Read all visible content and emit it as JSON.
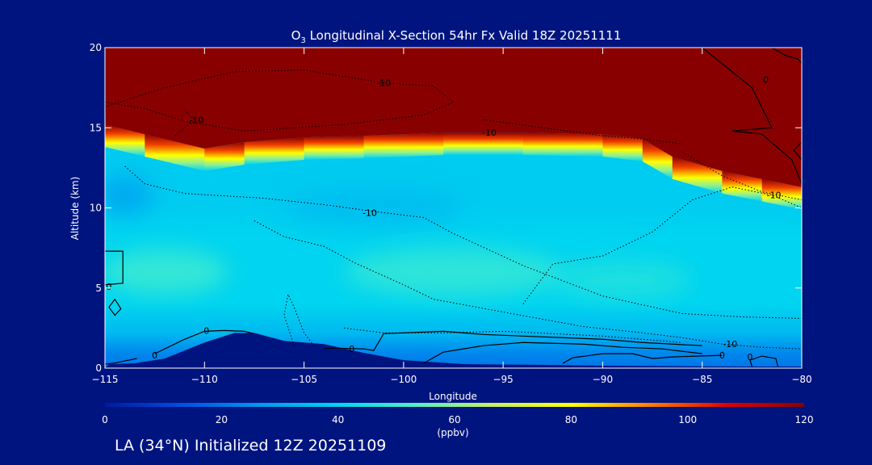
{
  "chart_data": {
    "type": "heatmap",
    "title_prefix": "O",
    "title_sub": "3",
    "title_rest": " Longitudinal X-Section 54hr  Fx Valid 18Z 20251111",
    "xlabel": "Longitude",
    "ylabel": "Altitude (km)",
    "xlim": [
      -115,
      -80
    ],
    "ylim": [
      0,
      20
    ],
    "xticks": [
      {
        "v": -115,
        "label": "−115"
      },
      {
        "v": -110,
        "label": "−110"
      },
      {
        "v": -105,
        "label": "−105"
      },
      {
        "v": -100,
        "label": "−100"
      },
      {
        "v": -95,
        "label": "−95"
      },
      {
        "v": -90,
        "label": "−90"
      },
      {
        "v": -85,
        "label": "−85"
      },
      {
        "v": -80,
        "label": "−80"
      }
    ],
    "yticks": [
      {
        "v": 0,
        "label": "0"
      },
      {
        "v": 5,
        "label": "5"
      },
      {
        "v": 10,
        "label": "10"
      },
      {
        "v": 15,
        "label": "15"
      },
      {
        "v": 20,
        "label": "20"
      }
    ],
    "colorbar": {
      "label": "(ppbv)",
      "min": 0,
      "max": 120,
      "ticks": [
        {
          "v": 0,
          "label": "0"
        },
        {
          "v": 20,
          "label": "20"
        },
        {
          "v": 40,
          "label": "40"
        },
        {
          "v": 60,
          "label": "60"
        },
        {
          "v": 80,
          "label": "80"
        },
        {
          "v": 100,
          "label": "100"
        },
        {
          "v": 120,
          "label": "120"
        }
      ],
      "stops": [
        "#001a9c",
        "#0050e0",
        "#0098f0",
        "#00d4f0",
        "#50f0c8",
        "#c8f060",
        "#ffff00",
        "#ff8000",
        "#e00000",
        "#880000"
      ]
    },
    "background_color": "#001480",
    "terrain_color": "#001480",
    "tropopause_km": [
      {
        "lon": -115,
        "km": 13.8
      },
      {
        "lon": -113,
        "km": 13.2
      },
      {
        "lon": -110,
        "km": 12.3
      },
      {
        "lon": -108,
        "km": 12.7
      },
      {
        "lon": -105,
        "km": 13.0
      },
      {
        "lon": -102,
        "km": 13.1
      },
      {
        "lon": -98,
        "km": 13.3
      },
      {
        "lon": -94,
        "km": 13.3
      },
      {
        "lon": -90,
        "km": 13.2
      },
      {
        "lon": -88,
        "km": 12.9
      },
      {
        "lon": -86.5,
        "km": 11.8
      },
      {
        "lon": -84,
        "km": 10.9
      },
      {
        "lon": -82,
        "km": 10.4
      },
      {
        "lon": -80,
        "km": 9.9
      }
    ],
    "terrain_km": [
      {
        "lon": -115,
        "km": 0
      },
      {
        "lon": -114.8,
        "km": 0.25
      },
      {
        "lon": -113.5,
        "km": 0.3
      },
      {
        "lon": -112,
        "km": 0.6
      },
      {
        "lon": -110,
        "km": 1.6
      },
      {
        "lon": -108.5,
        "km": 2.2
      },
      {
        "lon": -107.5,
        "km": 2.2
      },
      {
        "lon": -106,
        "km": 1.7
      },
      {
        "lon": -104,
        "km": 1.5
      },
      {
        "lon": -102,
        "km": 0.95
      },
      {
        "lon": -100,
        "km": 0.5
      },
      {
        "lon": -97,
        "km": 0.25
      },
      {
        "lon": -93,
        "km": 0.2
      },
      {
        "lon": -90,
        "km": 0.15
      },
      {
        "lon": -86,
        "km": 0.12
      },
      {
        "lon": -83,
        "km": 0.1
      },
      {
        "lon": -80,
        "km": 0.1
      }
    ],
    "contours": [
      {
        "level": "0",
        "style": "solid",
        "label_at": {
          "lon": -109.9,
          "km": 2.35
        },
        "points": [
          [
            -112.5,
            0.9
          ],
          [
            -111,
            1.8
          ],
          [
            -110,
            2.3
          ],
          [
            -109,
            2.35
          ],
          [
            -108,
            2.3
          ],
          [
            -107.5,
            2.15
          ]
        ]
      },
      {
        "level": "0",
        "style": "solid",
        "label_at": {
          "lon": -114.8,
          "km": 5.1
        },
        "points": [
          [
            -115,
            7.3
          ],
          [
            -114.1,
            7.3
          ],
          [
            -114.1,
            5.3
          ],
          [
            -115,
            5.2
          ]
        ]
      },
      {
        "level": "0",
        "style": "solid",
        "label_at": null,
        "points": [
          [
            -114.5,
            4.3
          ],
          [
            -114.2,
            3.7
          ],
          [
            -114.5,
            3.3
          ],
          [
            -114.8,
            3.8
          ],
          [
            -114.5,
            4.3
          ]
        ]
      },
      {
        "level": "0",
        "style": "solid",
        "label_at": {
          "lon": -112.5,
          "km": 0.8
        },
        "points": [
          [
            -113.4,
            0.6
          ],
          [
            -114.6,
            0.3
          ],
          [
            -115,
            0.25
          ]
        ]
      },
      {
        "level": "0",
        "style": "solid",
        "label_at": {
          "lon": -102.6,
          "km": 1.2
        },
        "points": [
          [
            -104,
            1.2
          ],
          [
            -103.5,
            1.25
          ],
          [
            -102,
            1.2
          ],
          [
            -101.5,
            1.1
          ],
          [
            -101,
            2.15
          ],
          [
            -98,
            2.3
          ],
          [
            -96,
            2.1
          ],
          [
            -94,
            2.0
          ],
          [
            -90,
            1.8
          ],
          [
            -88,
            1.6
          ],
          [
            -85,
            1.4
          ]
        ]
      },
      {
        "level": "0",
        "style": "solid",
        "label_at": null,
        "points": [
          [
            -99,
            0.3
          ],
          [
            -98,
            1.0
          ],
          [
            -96,
            1.4
          ],
          [
            -94,
            1.6
          ],
          [
            -91,
            1.5
          ],
          [
            -89,
            1.3
          ],
          [
            -87,
            1.2
          ],
          [
            -85,
            0.9
          ]
        ]
      },
      {
        "level": "0",
        "style": "solid",
        "label_at": {
          "lon": -84,
          "km": 0.8
        },
        "points": [
          [
            -92,
            0.3
          ],
          [
            -91.5,
            0.65
          ],
          [
            -90,
            0.9
          ],
          [
            -88.5,
            0.9
          ],
          [
            -87.5,
            0.6
          ],
          [
            -86.5,
            0.7
          ],
          [
            -84,
            0.8
          ]
        ]
      },
      {
        "level": "0",
        "style": "solid",
        "label_at": {
          "lon": -82.6,
          "km": 0.7
        },
        "points": [
          [
            -82.5,
            0.1
          ],
          [
            -82.6,
            0.5
          ],
          [
            -82,
            0.75
          ],
          [
            -81.3,
            0.6
          ],
          [
            -81.2,
            0.1
          ]
        ]
      },
      {
        "level": "0",
        "style": "solid",
        "label_at": {
          "lon": -81.8,
          "km": 18
        },
        "points": [
          [
            -85,
            20
          ],
          [
            -82.5,
            17.5
          ],
          [
            -81.5,
            15.0
          ],
          [
            -83.5,
            14.8
          ],
          [
            -82,
            14.6
          ],
          [
            -80.5,
            13
          ],
          [
            -80,
            11.5
          ]
        ]
      },
      {
        "level": "0",
        "style": "solid",
        "label_at": null,
        "points": [
          [
            -81.5,
            20
          ],
          [
            -80.8,
            19.5
          ],
          [
            -80.2,
            19.3
          ],
          [
            -80,
            19
          ]
        ]
      },
      {
        "level": "0",
        "style": "solid",
        "label_at": null,
        "points": [
          [
            -80,
            14.1
          ],
          [
            -80.4,
            13.6
          ],
          [
            -80,
            13.0
          ]
        ]
      },
      {
        "level": "-10",
        "style": "dotted",
        "label_at": {
          "lon": -101,
          "km": 17.8
        },
        "points": [
          [
            -115,
            16.3
          ],
          [
            -112,
            17.5
          ],
          [
            -108.5,
            18.5
          ],
          [
            -105,
            18.6
          ],
          [
            -101,
            17.8
          ],
          [
            -98.5,
            17.6
          ],
          [
            -97.5,
            16.6
          ],
          [
            -99,
            15.8
          ],
          [
            -103,
            15.2
          ],
          [
            -108,
            14.8
          ],
          [
            -111,
            15.4
          ],
          [
            -113,
            16.2
          ],
          [
            -115,
            16.6
          ]
        ]
      },
      {
        "level": "-10",
        "style": "dotted",
        "label_at": {
          "lon": -95.7,
          "km": 14.7
        },
        "points": [
          [
            -96,
            15.5
          ],
          [
            -93,
            15.0
          ],
          [
            -90,
            14.5
          ],
          [
            -88,
            14.3
          ],
          [
            -86,
            14.0
          ]
        ]
      },
      {
        "level": "-10",
        "style": "dotted",
        "label_at": {
          "lon": -110.4,
          "km": 15.5
        },
        "points": [
          [
            -111.5,
            14.5
          ],
          [
            -110.5,
            15.5
          ],
          [
            -111,
            16.1
          ]
        ]
      },
      {
        "level": "-10",
        "style": "dotted",
        "label_at": {
          "lon": -101.7,
          "km": 9.7
        },
        "points": [
          [
            -114,
            12.6
          ],
          [
            -113,
            11.5
          ],
          [
            -111,
            10.9
          ],
          [
            -107,
            10.6
          ],
          [
            -104,
            10.2
          ],
          [
            -101,
            9.7
          ],
          [
            -99,
            9.4
          ],
          [
            -97.5,
            8.4
          ],
          [
            -94,
            6.4
          ],
          [
            -90,
            4.5
          ],
          [
            -86,
            3.4
          ],
          [
            -83,
            3.2
          ],
          [
            -80,
            3.1
          ]
        ]
      },
      {
        "level": "-10",
        "style": "dotted",
        "label_at": {
          "lon": -83.6,
          "km": 1.5
        },
        "points": [
          [
            -107.5,
            9.2
          ],
          [
            -106,
            8.2
          ],
          [
            -104,
            7.6
          ],
          [
            -102.5,
            6.6
          ],
          [
            -100,
            5.2
          ],
          [
            -98.5,
            4.3
          ],
          [
            -95,
            3.5
          ],
          [
            -91,
            2.6
          ],
          [
            -88,
            2.2
          ],
          [
            -86,
            1.9
          ],
          [
            -84,
            1.5
          ],
          [
            -82,
            1.3
          ],
          [
            -80,
            1.2
          ]
        ]
      },
      {
        "level": "-10",
        "style": "dotted",
        "label_at": {
          "lon": -81.4,
          "km": 10.8
        },
        "points": [
          [
            -94,
            4.0
          ],
          [
            -92.5,
            6.5
          ],
          [
            -90,
            7.0
          ],
          [
            -87.5,
            8.5
          ],
          [
            -85.5,
            10.5
          ],
          [
            -83.5,
            11.3
          ],
          [
            -81.5,
            10.8
          ],
          [
            -80,
            10.0
          ]
        ]
      },
      {
        "level": "-10",
        "style": "dotted",
        "label_at": null,
        "points": [
          [
            -86,
            13.5
          ],
          [
            -84,
            12.0
          ],
          [
            -82,
            11.0
          ],
          [
            -80,
            10.5
          ]
        ]
      },
      {
        "level": "-10",
        "style": "dotted",
        "label_at": null,
        "points": [
          [
            -105.5,
            1.4
          ],
          [
            -106,
            3.3
          ],
          [
            -105.8,
            4.6
          ],
          [
            -105.5,
            3.8
          ],
          [
            -105,
            2.2
          ],
          [
            -104.5,
            1.4
          ]
        ]
      },
      {
        "level": "-10",
        "style": "dotted",
        "label_at": null,
        "points": [
          [
            -103,
            2.5
          ],
          [
            -101,
            2.2
          ],
          [
            -98,
            2.2
          ],
          [
            -95,
            2.3
          ],
          [
            -90,
            2.0
          ],
          [
            -86,
            1.6
          ]
        ]
      }
    ],
    "blobs": [
      {
        "lon": -112,
        "km": 6.0,
        "rx": 3.2,
        "ry": 1.4,
        "value": 52
      },
      {
        "lon": -97.5,
        "km": 6.0,
        "rx": 5.5,
        "ry": 1.5,
        "value": 50
      },
      {
        "lon": -89,
        "km": 5.5,
        "rx": 3.5,
        "ry": 1.2,
        "value": 47
      },
      {
        "lon": -101.5,
        "km": 10.0,
        "rx": 4.5,
        "ry": 1.2,
        "value": 34
      },
      {
        "lon": -114,
        "km": 10.8,
        "rx": 1.4,
        "ry": 1.2,
        "value": 28
      }
    ],
    "layer_values": [
      {
        "km": 0.0,
        "value": 20
      },
      {
        "km": 1.0,
        "value": 24
      },
      {
        "km": 2.2,
        "value": 34
      },
      {
        "km": 4.0,
        "value": 40
      },
      {
        "km": 8.0,
        "value": 40
      },
      {
        "km": 10.5,
        "value": 38
      },
      {
        "km": 11.8,
        "value": 38
      }
    ],
    "tropopause_stops": [
      {
        "offset_km": 0.0,
        "value": 40
      },
      {
        "offset_km": 0.3,
        "value": 60
      },
      {
        "offset_km": 0.6,
        "value": 80
      },
      {
        "offset_km": 1.0,
        "value": 100
      },
      {
        "offset_km": 1.4,
        "value": 120
      }
    ]
  },
  "footer": {
    "subtitle": "LA (34°N) Initialized 12Z 20251109"
  }
}
